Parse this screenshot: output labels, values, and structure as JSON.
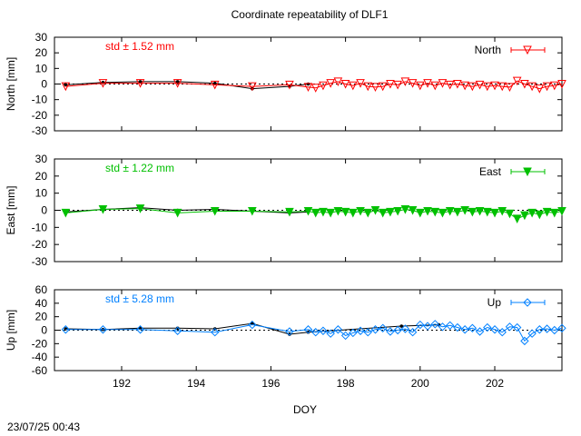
{
  "title": "Coordinate repeatability of DLF1",
  "timestamp": "23/07/25 00:43",
  "xlabel": "DOY",
  "xlim": [
    190.2,
    203.8
  ],
  "xticks": [
    "192",
    "194",
    "196",
    "198",
    "200",
    "202"
  ],
  "chart_data": [
    {
      "type": "scatter",
      "ylabel": "North [mm]",
      "ylim": [
        -30,
        30
      ],
      "yticks": [
        "30",
        "20",
        "10",
        "0",
        "-10",
        "-20",
        "-30"
      ],
      "legend": "North",
      "legend_position": "top-right",
      "std_label": "std ± 1.52 mm",
      "color": "#ff0000",
      "marker": "triangle-down-open",
      "series_main": {
        "x": [
          190.5,
          191.5,
          192.5,
          193.5,
          194.5,
          195.5,
          196.5,
          197.0,
          197.2,
          197.4,
          197.6,
          197.8,
          198.0,
          198.2,
          198.4,
          198.6,
          198.8,
          199.0,
          199.2,
          199.4,
          199.6,
          199.8,
          200.0,
          200.2,
          200.4,
          200.6,
          200.8,
          201.0,
          201.2,
          201.4,
          201.6,
          201.8,
          202.0,
          202.2,
          202.4,
          202.6,
          202.8,
          203.0,
          203.2,
          203.4,
          203.6,
          203.8
        ],
        "y": [
          -1.5,
          0.5,
          0.5,
          0.5,
          -0.5,
          -1.5,
          -0.5,
          -2.0,
          -2.5,
          -1.0,
          0.5,
          1.5,
          0.0,
          -1.0,
          0.5,
          -1.5,
          -2.0,
          -1.5,
          0.0,
          -0.5,
          1.5,
          0.5,
          -1.0,
          0.5,
          -1.0,
          0.5,
          -0.5,
          0.0,
          -1.0,
          -1.5,
          -0.5,
          -1.5,
          -1.0,
          -1.5,
          -2.0,
          2.0,
          0.0,
          -1.5,
          -3.0,
          -1.5,
          -1.0,
          0.0
        ]
      },
      "series_ref": {
        "x": [
          190.5,
          191.5,
          192.5,
          193.5,
          194.5,
          195.5,
          196.5,
          197.0
        ],
        "y": [
          -0.5,
          1.0,
          1.5,
          1.5,
          0.5,
          -3.0,
          -1.5,
          0.0
        ]
      }
    },
    {
      "type": "scatter",
      "ylabel": "East [mm]",
      "ylim": [
        -30,
        30
      ],
      "yticks": [
        "30",
        "20",
        "10",
        "0",
        "-10",
        "-20",
        "-30"
      ],
      "legend": "East",
      "legend_position": "top-right",
      "std_label": "std ± 1.22 mm",
      "color": "#00c000",
      "marker": "triangle-down-filled",
      "series_main": {
        "x": [
          190.5,
          191.5,
          192.5,
          193.5,
          194.5,
          195.5,
          196.5,
          197.0,
          197.2,
          197.4,
          197.6,
          197.8,
          198.0,
          198.2,
          198.4,
          198.6,
          198.8,
          199.0,
          199.2,
          199.4,
          199.6,
          199.8,
          200.0,
          200.2,
          200.4,
          200.6,
          200.8,
          201.0,
          201.2,
          201.4,
          201.6,
          201.8,
          202.0,
          202.2,
          202.4,
          202.6,
          202.8,
          203.0,
          203.2,
          203.4,
          203.6,
          203.8
        ],
        "y": [
          -1.5,
          0.5,
          1.0,
          -1.5,
          -0.5,
          -0.5,
          -1.0,
          -0.5,
          -1.5,
          -1.0,
          -1.5,
          -0.5,
          -1.0,
          -1.5,
          -0.5,
          -1.5,
          0.0,
          -1.5,
          -1.0,
          -0.5,
          0.5,
          0.0,
          -1.5,
          -0.5,
          -1.0,
          -1.5,
          -0.5,
          -1.0,
          0.0,
          -1.0,
          -0.5,
          -1.0,
          -1.5,
          -0.5,
          -2.0,
          -5.0,
          -3.0,
          -1.5,
          -2.5,
          -1.0,
          -1.5,
          -0.5
        ]
      },
      "series_ref": {
        "x": [
          190.5,
          191.5,
          192.5,
          193.5,
          194.5,
          195.5,
          196.5,
          197.0
        ],
        "y": [
          -1.0,
          0.5,
          1.5,
          0.0,
          0.5,
          -0.5,
          -1.5,
          -1.0
        ]
      }
    },
    {
      "type": "scatter",
      "ylabel": "Up [mm]",
      "ylim": [
        -60,
        60
      ],
      "yticks": [
        "60",
        "40",
        "20",
        "0",
        "-20",
        "-40",
        "-60"
      ],
      "legend": "Up",
      "legend_position": "top-right",
      "std_label": "std ± 5.28 mm",
      "color": "#0080ff",
      "marker": "diamond-open",
      "series_main": {
        "x": [
          190.5,
          191.5,
          192.5,
          193.5,
          194.5,
          195.5,
          196.5,
          197.0,
          197.2,
          197.4,
          197.6,
          197.8,
          198.0,
          198.2,
          198.4,
          198.6,
          198.8,
          199.0,
          199.2,
          199.4,
          199.6,
          199.8,
          200.0,
          200.2,
          200.4,
          200.6,
          200.8,
          201.0,
          201.2,
          201.4,
          201.6,
          201.8,
          202.0,
          202.2,
          202.4,
          202.6,
          202.8,
          203.0,
          203.2,
          203.4,
          203.6,
          203.8
        ],
        "y": [
          1.0,
          1.0,
          1.0,
          -1.0,
          -3.0,
          8.0,
          -2.0,
          1.0,
          -3.0,
          -1.0,
          -5.0,
          1.0,
          -8.0,
          -4.0,
          -1.0,
          -3.0,
          1.0,
          3.0,
          -2.0,
          0.0,
          2.0,
          -3.0,
          8.0,
          6.0,
          9.0,
          5.0,
          7.0,
          4.0,
          1.0,
          3.0,
          -2.0,
          4.0,
          1.0,
          -3.0,
          5.0,
          4.0,
          -16.0,
          -5.0,
          1.0,
          2.0,
          0.0,
          3.0
        ]
      },
      "series_ref": {
        "x": [
          190.5,
          191.5,
          192.5,
          193.5,
          194.5,
          195.5,
          196.5,
          197.0,
          199.5,
          200.5
        ],
        "y": [
          2.0,
          1.0,
          3.0,
          3.0,
          2.0,
          10.0,
          -6.0,
          -3.0,
          6.0,
          8.0
        ]
      }
    }
  ]
}
